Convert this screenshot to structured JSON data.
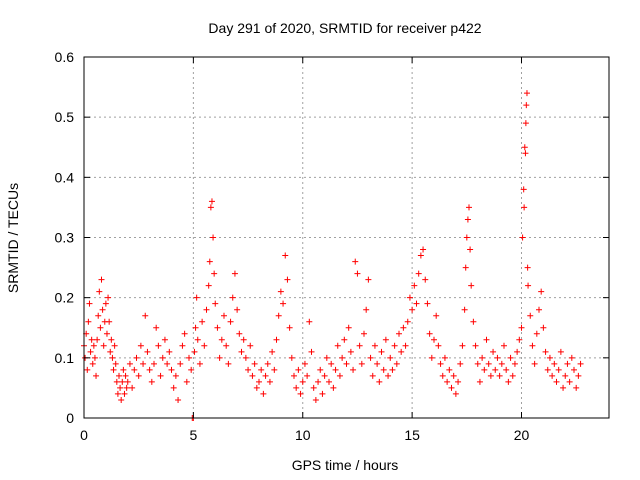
{
  "chart_data": {
    "type": "scatter",
    "title": "Day 291 of 2020, SRMTID for receiver p422",
    "xlabel": "GPS time / hours",
    "ylabel": "SRMTID / TECUs",
    "xlim": [
      0,
      24
    ],
    "ylim": [
      0,
      0.6
    ],
    "x_ticks": [
      0,
      5,
      10,
      15,
      20
    ],
    "y_ticks": [
      0,
      0.1,
      0.2,
      0.3,
      0.4,
      0.5,
      0.6
    ],
    "x_tick_labels": [
      "0",
      "5",
      "10",
      "15",
      "20"
    ],
    "y_tick_labels": [
      "0",
      "0.1",
      "0.2",
      "0.3",
      "0.4",
      "0.5",
      "0.6"
    ],
    "grid": true,
    "marker": "+",
    "color": "#ff0000",
    "series": [
      {
        "name": "SRMTID",
        "points": [
          [
            0.0,
            0.12
          ],
          [
            0.05,
            0.1
          ],
          [
            0.1,
            0.14
          ],
          [
            0.15,
            0.08
          ],
          [
            0.2,
            0.16
          ],
          [
            0.25,
            0.19
          ],
          [
            0.3,
            0.11
          ],
          [
            0.35,
            0.13
          ],
          [
            0.4,
            0.09
          ],
          [
            0.45,
            0.12
          ],
          [
            0.5,
            0.1
          ],
          [
            0.55,
            0.07
          ],
          [
            0.6,
            0.13
          ],
          [
            0.65,
            0.17
          ],
          [
            0.7,
            0.21
          ],
          [
            0.75,
            0.15
          ],
          [
            0.8,
            0.23
          ],
          [
            0.85,
            0.18
          ],
          [
            0.9,
            0.12
          ],
          [
            0.95,
            0.16
          ],
          [
            1.0,
            0.19
          ],
          [
            1.05,
            0.14
          ],
          [
            1.1,
            0.2
          ],
          [
            1.15,
            0.16
          ],
          [
            1.2,
            0.11
          ],
          [
            1.25,
            0.13
          ],
          [
            1.3,
            0.1
          ],
          [
            1.35,
            0.08
          ],
          [
            1.4,
            0.12
          ],
          [
            1.45,
            0.09
          ],
          [
            1.5,
            0.06
          ],
          [
            1.55,
            0.04
          ],
          [
            1.6,
            0.07
          ],
          [
            1.65,
            0.05
          ],
          [
            1.7,
            0.03
          ],
          [
            1.75,
            0.06
          ],
          [
            1.8,
            0.08
          ],
          [
            1.85,
            0.04
          ],
          [
            1.9,
            0.07
          ],
          [
            1.95,
            0.05
          ],
          [
            2.0,
            0.06
          ],
          [
            2.1,
            0.09
          ],
          [
            2.2,
            0.05
          ],
          [
            2.3,
            0.08
          ],
          [
            2.4,
            0.1
          ],
          [
            2.5,
            0.07
          ],
          [
            2.6,
            0.12
          ],
          [
            2.7,
            0.09
          ],
          [
            2.8,
            0.17
          ],
          [
            2.9,
            0.11
          ],
          [
            3.0,
            0.08
          ],
          [
            3.1,
            0.06
          ],
          [
            3.2,
            0.09
          ],
          [
            3.3,
            0.15
          ],
          [
            3.4,
            0.12
          ],
          [
            3.5,
            0.07
          ],
          [
            3.6,
            0.1
          ],
          [
            3.7,
            0.13
          ],
          [
            3.8,
            0.09
          ],
          [
            3.9,
            0.11
          ],
          [
            4.0,
            0.08
          ],
          [
            4.1,
            0.05
          ],
          [
            4.2,
            0.07
          ],
          [
            4.3,
            0.03
          ],
          [
            4.4,
            0.09
          ],
          [
            4.5,
            0.12
          ],
          [
            4.6,
            0.14
          ],
          [
            4.7,
            0.06
          ],
          [
            4.8,
            0.1
          ],
          [
            4.9,
            0.08
          ],
          [
            4.95,
            0.0
          ],
          [
            5.0,
            0.0
          ],
          [
            5.05,
            0.11
          ],
          [
            5.1,
            0.15
          ],
          [
            5.15,
            0.2
          ],
          [
            5.2,
            0.13
          ],
          [
            5.3,
            0.09
          ],
          [
            5.4,
            0.16
          ],
          [
            5.5,
            0.12
          ],
          [
            5.6,
            0.18
          ],
          [
            5.7,
            0.22
          ],
          [
            5.75,
            0.26
          ],
          [
            5.8,
            0.35
          ],
          [
            5.85,
            0.36
          ],
          [
            5.9,
            0.3
          ],
          [
            5.95,
            0.24
          ],
          [
            6.0,
            0.19
          ],
          [
            6.1,
            0.15
          ],
          [
            6.2,
            0.1
          ],
          [
            6.3,
            0.13
          ],
          [
            6.4,
            0.17
          ],
          [
            6.5,
            0.12
          ],
          [
            6.6,
            0.09
          ],
          [
            6.7,
            0.16
          ],
          [
            6.8,
            0.2
          ],
          [
            6.9,
            0.24
          ],
          [
            7.0,
            0.18
          ],
          [
            7.1,
            0.14
          ],
          [
            7.2,
            0.11
          ],
          [
            7.3,
            0.13
          ],
          [
            7.4,
            0.1
          ],
          [
            7.5,
            0.08
          ],
          [
            7.6,
            0.12
          ],
          [
            7.7,
            0.07
          ],
          [
            7.8,
            0.09
          ],
          [
            7.9,
            0.05
          ],
          [
            8.0,
            0.06
          ],
          [
            8.1,
            0.08
          ],
          [
            8.2,
            0.04
          ],
          [
            8.3,
            0.07
          ],
          [
            8.4,
            0.09
          ],
          [
            8.5,
            0.06
          ],
          [
            8.6,
            0.11
          ],
          [
            8.7,
            0.08
          ],
          [
            8.8,
            0.13
          ],
          [
            8.9,
            0.17
          ],
          [
            9.0,
            0.21
          ],
          [
            9.1,
            0.19
          ],
          [
            9.2,
            0.27
          ],
          [
            9.3,
            0.23
          ],
          [
            9.4,
            0.15
          ],
          [
            9.5,
            0.1
          ],
          [
            9.6,
            0.07
          ],
          [
            9.7,
            0.05
          ],
          [
            9.8,
            0.08
          ],
          [
            9.9,
            0.04
          ],
          [
            10.0,
            0.06
          ],
          [
            10.1,
            0.09
          ],
          [
            10.2,
            0.07
          ],
          [
            10.3,
            0.16
          ],
          [
            10.4,
            0.11
          ],
          [
            10.5,
            0.05
          ],
          [
            10.6,
            0.03
          ],
          [
            10.7,
            0.06
          ],
          [
            10.8,
            0.08
          ],
          [
            10.9,
            0.04
          ],
          [
            11.0,
            0.07
          ],
          [
            11.1,
            0.1
          ],
          [
            11.2,
            0.06
          ],
          [
            11.3,
            0.09
          ],
          [
            11.4,
            0.05
          ],
          [
            11.5,
            0.08
          ],
          [
            11.6,
            0.12
          ],
          [
            11.7,
            0.07
          ],
          [
            11.8,
            0.1
          ],
          [
            11.9,
            0.13
          ],
          [
            12.0,
            0.09
          ],
          [
            12.1,
            0.15
          ],
          [
            12.2,
            0.11
          ],
          [
            12.3,
            0.08
          ],
          [
            12.4,
            0.26
          ],
          [
            12.5,
            0.24
          ],
          [
            12.6,
            0.12
          ],
          [
            12.7,
            0.09
          ],
          [
            12.8,
            0.14
          ],
          [
            12.9,
            0.18
          ],
          [
            13.0,
            0.23
          ],
          [
            13.1,
            0.1
          ],
          [
            13.2,
            0.07
          ],
          [
            13.3,
            0.12
          ],
          [
            13.4,
            0.09
          ],
          [
            13.5,
            0.06
          ],
          [
            13.6,
            0.11
          ],
          [
            13.7,
            0.08
          ],
          [
            13.8,
            0.13
          ],
          [
            13.9,
            0.07
          ],
          [
            14.0,
            0.1
          ],
          [
            14.1,
            0.08
          ],
          [
            14.2,
            0.12
          ],
          [
            14.3,
            0.09
          ],
          [
            14.4,
            0.14
          ],
          [
            14.5,
            0.11
          ],
          [
            14.6,
            0.15
          ],
          [
            14.7,
            0.12
          ],
          [
            14.8,
            0.16
          ],
          [
            14.9,
            0.2
          ],
          [
            15.0,
            0.18
          ],
          [
            15.1,
            0.22
          ],
          [
            15.2,
            0.19
          ],
          [
            15.3,
            0.24
          ],
          [
            15.4,
            0.27
          ],
          [
            15.5,
            0.28
          ],
          [
            15.6,
            0.23
          ],
          [
            15.7,
            0.19
          ],
          [
            15.8,
            0.14
          ],
          [
            15.9,
            0.1
          ],
          [
            16.0,
            0.13
          ],
          [
            16.1,
            0.17
          ],
          [
            16.2,
            0.12
          ],
          [
            16.3,
            0.09
          ],
          [
            16.4,
            0.07
          ],
          [
            16.5,
            0.1
          ],
          [
            16.6,
            0.06
          ],
          [
            16.7,
            0.08
          ],
          [
            16.8,
            0.05
          ],
          [
            16.9,
            0.07
          ],
          [
            17.0,
            0.04
          ],
          [
            17.1,
            0.06
          ],
          [
            17.2,
            0.09
          ],
          [
            17.3,
            0.12
          ],
          [
            17.4,
            0.18
          ],
          [
            17.45,
            0.25
          ],
          [
            17.5,
            0.3
          ],
          [
            17.55,
            0.33
          ],
          [
            17.6,
            0.35
          ],
          [
            17.65,
            0.28
          ],
          [
            17.7,
            0.22
          ],
          [
            17.8,
            0.16
          ],
          [
            17.9,
            0.12
          ],
          [
            18.0,
            0.09
          ],
          [
            18.1,
            0.06
          ],
          [
            18.2,
            0.1
          ],
          [
            18.3,
            0.08
          ],
          [
            18.4,
            0.13
          ],
          [
            18.5,
            0.09
          ],
          [
            18.6,
            0.07
          ],
          [
            18.7,
            0.11
          ],
          [
            18.8,
            0.08
          ],
          [
            18.9,
            0.1
          ],
          [
            19.0,
            0.07
          ],
          [
            19.1,
            0.09
          ],
          [
            19.2,
            0.12
          ],
          [
            19.3,
            0.08
          ],
          [
            19.4,
            0.06
          ],
          [
            19.5,
            0.1
          ],
          [
            19.6,
            0.07
          ],
          [
            19.7,
            0.09
          ],
          [
            19.8,
            0.11
          ],
          [
            19.9,
            0.13
          ],
          [
            20.0,
            0.15
          ],
          [
            20.05,
            0.3
          ],
          [
            20.1,
            0.38
          ],
          [
            20.12,
            0.35
          ],
          [
            20.15,
            0.45
          ],
          [
            20.18,
            0.44
          ],
          [
            20.2,
            0.49
          ],
          [
            20.22,
            0.52
          ],
          [
            20.25,
            0.54
          ],
          [
            20.28,
            0.25
          ],
          [
            20.3,
            0.22
          ],
          [
            20.4,
            0.17
          ],
          [
            20.5,
            0.12
          ],
          [
            20.6,
            0.09
          ],
          [
            20.7,
            0.14
          ],
          [
            20.8,
            0.18
          ],
          [
            20.9,
            0.21
          ],
          [
            21.0,
            0.15
          ],
          [
            21.1,
            0.11
          ],
          [
            21.2,
            0.08
          ],
          [
            21.3,
            0.1
          ],
          [
            21.4,
            0.07
          ],
          [
            21.5,
            0.09
          ],
          [
            21.6,
            0.06
          ],
          [
            21.7,
            0.08
          ],
          [
            21.8,
            0.11
          ],
          [
            21.9,
            0.05
          ],
          [
            22.0,
            0.07
          ],
          [
            22.1,
            0.09
          ],
          [
            22.2,
            0.06
          ],
          [
            22.3,
            0.1
          ],
          [
            22.4,
            0.08
          ],
          [
            22.5,
            0.05
          ],
          [
            22.6,
            0.07
          ],
          [
            22.7,
            0.09
          ]
        ]
      }
    ]
  }
}
